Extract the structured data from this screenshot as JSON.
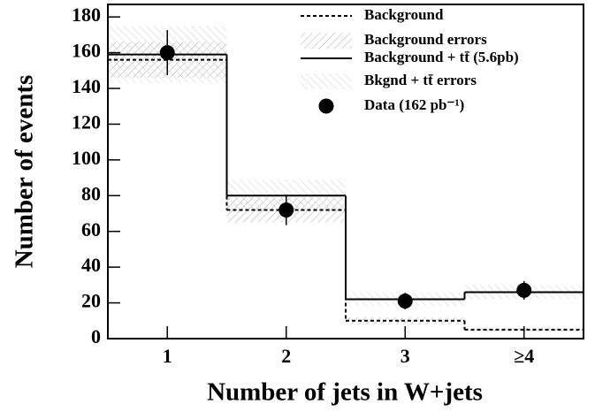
{
  "chart_data": {
    "type": "step",
    "x_label": "Number of jets in W+jets",
    "y_label": "Number of events",
    "categories": [
      "1",
      "2",
      "3",
      "≥4"
    ],
    "ylim": [
      0,
      187
    ],
    "yticks": [
      0,
      20,
      40,
      60,
      80,
      100,
      120,
      140,
      160,
      180
    ],
    "series": [
      {
        "name": "Background",
        "color": "#000000",
        "style": "dashed",
        "values": [
          156,
          72,
          10,
          5
        ]
      },
      {
        "name": "Background errors",
        "color": "#999999",
        "style": "band",
        "of": 0,
        "values": [
          10,
          7,
          2,
          1
        ]
      },
      {
        "name": "Background + tt̄ (5.6pb)",
        "color": "#000000",
        "style": "solid",
        "values": [
          159,
          80,
          22,
          26
        ]
      },
      {
        "name": "Bkgnd + tt̄ errors",
        "color": "#bbbbbb",
        "style": "band",
        "of": 2,
        "values": [
          16,
          9,
          4,
          4
        ]
      },
      {
        "name": "Data (162 pb⁻¹)",
        "color": "#000000",
        "style": "points",
        "values": [
          160,
          72,
          21,
          27
        ],
        "errors": [
          12.6,
          8.5,
          4.6,
          5.2
        ]
      }
    ]
  }
}
